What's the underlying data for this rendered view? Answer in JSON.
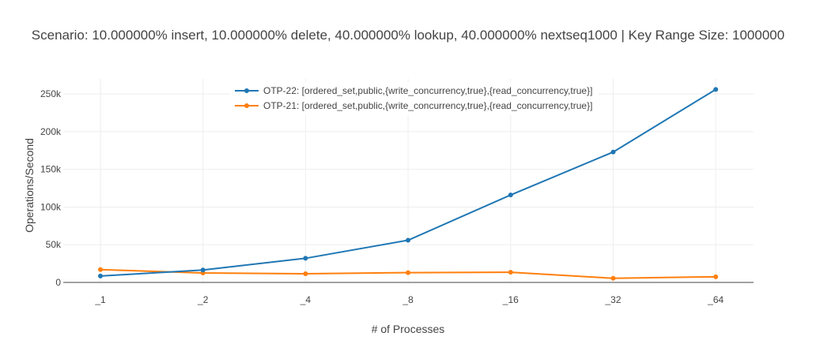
{
  "chart_data": {
    "type": "line",
    "title": "Scenario:  10.000000% insert,  10.000000% delete,  40.000000% lookup,  40.000000% nextseq1000 | Key Range Size: 1000000",
    "xlabel": "# of Processes",
    "ylabel": "Operations/Second",
    "categories": [
      "_1",
      "_2",
      "_4",
      "_8",
      "_16",
      "_32",
      "_64"
    ],
    "yticks": [
      0,
      50000,
      100000,
      150000,
      200000,
      250000
    ],
    "ytick_labels": [
      "0",
      "50k",
      "100k",
      "150k",
      "200k",
      "250k"
    ],
    "ylim": [
      0,
      270000
    ],
    "grid": true,
    "legend_position": "top-center",
    "series": [
      {
        "name": "OTP-22: [ordered_set,public,{write_concurrency,true},{read_concurrency,true}]",
        "color": "#1f77b4",
        "values": [
          8500,
          16500,
          32000,
          56000,
          116000,
          173000,
          256000
        ]
      },
      {
        "name": "OTP-21: [ordered_set,public,{write_concurrency,true},{read_concurrency,true}]",
        "color": "#ff7f0e",
        "values": [
          17000,
          12500,
          11500,
          13000,
          13500,
          5500,
          7500
        ]
      }
    ]
  }
}
